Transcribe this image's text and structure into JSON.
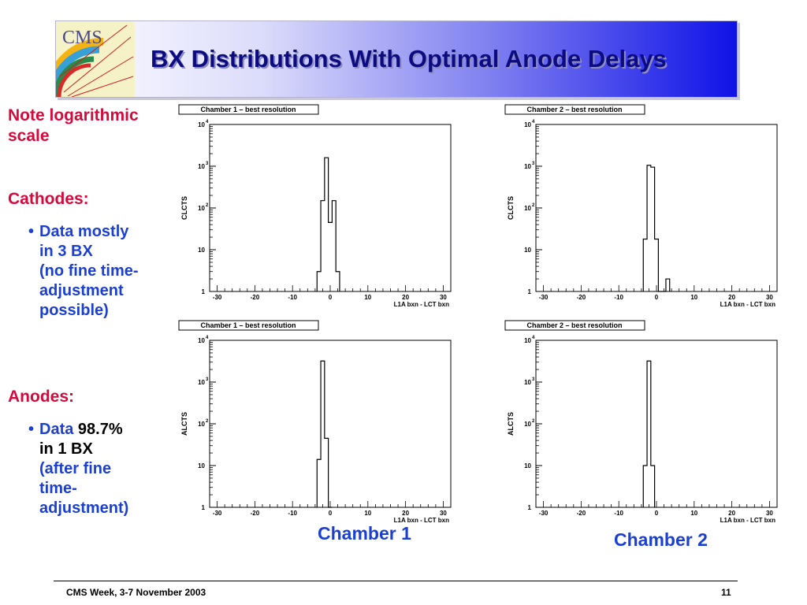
{
  "slide": {
    "title": "BX Distributions With Optimal Anode Delays",
    "logo_text": "CMS",
    "note": "Note logarithmic scale",
    "cathodes_heading": "Cathodes:",
    "cathodes_bullet": [
      "Data mostly",
      "in 3 BX",
      "(no fine time-",
      "adjustment",
      "possible)"
    ],
    "anodes_heading": "Anodes:",
    "anodes_bullet_a": "Data",
    "anodes_bullet_b": "98.7%",
    "anodes_bullet_c": "in 1 BX",
    "anodes_bullet_rest": [
      "(after fine",
      "time-",
      "adjustment)"
    ],
    "chamber1_label": "Chamber 1",
    "chamber2_label": "Chamber 2",
    "footer_left": "CMS Week, 3-7 November 2003",
    "footer_right": "11"
  },
  "chart_data": [
    {
      "type": "bar",
      "title": "Chamber 1 – best resolution",
      "ylabel": "CLCTS",
      "xlabel": "L1A bxn - LCT bxn",
      "yscale": "log",
      "ylim": [
        1,
        10000
      ],
      "xlim": [
        -32,
        32
      ],
      "xticks": [
        -30,
        -20,
        -10,
        0,
        10,
        20,
        30
      ],
      "bins": [
        -3,
        -2,
        -1,
        0,
        1,
        2
      ],
      "values": [
        3,
        150,
        1600,
        45,
        150,
        3
      ]
    },
    {
      "type": "bar",
      "title": "Chamber 2 – best resolution",
      "ylabel": "CLCTS",
      "xlabel": "L1A bxn - LCT bxn",
      "yscale": "log",
      "ylim": [
        1,
        10000
      ],
      "xlim": [
        -32,
        32
      ],
      "xticks": [
        -30,
        -20,
        -10,
        0,
        10,
        20,
        30
      ],
      "bins": [
        -3,
        -2,
        -1,
        0,
        1,
        2,
        3
      ],
      "values": [
        18,
        1050,
        950,
        18,
        0,
        0,
        2
      ]
    },
    {
      "type": "bar",
      "title": "Chamber 1 – best resolution",
      "ylabel": "ALCTS",
      "xlabel": "L1A bxn - LCT bxn",
      "yscale": "log",
      "ylim": [
        1,
        10000
      ],
      "xlim": [
        -32,
        32
      ],
      "xticks": [
        -30,
        -20,
        -10,
        0,
        10,
        20,
        30
      ],
      "bins": [
        -3,
        -2,
        -1,
        0
      ],
      "values": [
        14,
        3200,
        45,
        1
      ]
    },
    {
      "type": "bar",
      "title": "Chamber 2 – best resolution",
      "ylabel": "ALCTS",
      "xlabel": "L1A bxn - LCT bxn",
      "yscale": "log",
      "ylim": [
        1,
        10000
      ],
      "xlim": [
        -32,
        32
      ],
      "xticks": [
        -30,
        -20,
        -10,
        0,
        10,
        20,
        30
      ],
      "bins": [
        -3,
        -2,
        -1
      ],
      "values": [
        10,
        3200,
        10
      ]
    }
  ]
}
